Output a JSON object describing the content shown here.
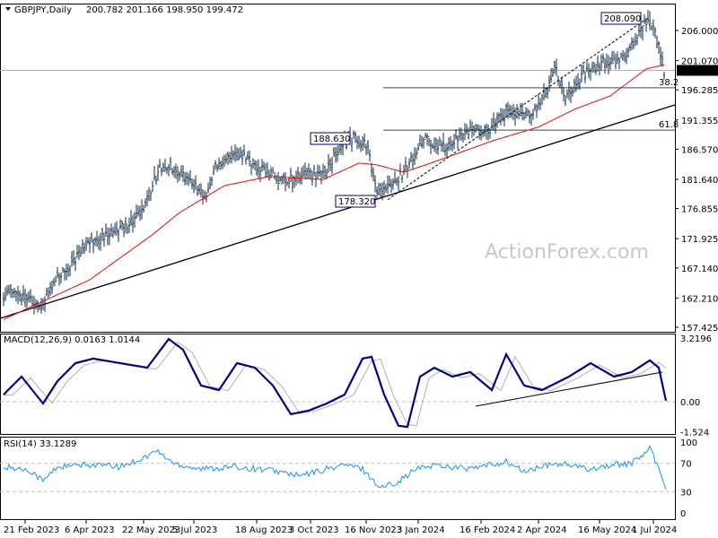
{
  "header": {
    "symbol": "GBPJPY,Daily",
    "ohlc": "200.782 201.166 198.950 199.472"
  },
  "watermark": "ActionForex.com",
  "colors": {
    "bars": "#0f2a44",
    "ma": "#ff0000",
    "macd": "#00008b",
    "signal": "#b0b0b0",
    "rsi": "#1e90ff"
  },
  "chart_data": [
    {
      "type": "line",
      "title": "GBPJPY,Daily",
      "ylim": [
        157.425,
        208.5
      ],
      "yticks": [
        "206.000",
        "201.070",
        "196.285",
        "191.355",
        "186.570",
        "181.640",
        "176.855",
        "171.925",
        "167.140",
        "162.210",
        "157.425"
      ],
      "ytick_values": [
        206.0,
        201.07,
        196.285,
        191.355,
        186.57,
        181.64,
        176.855,
        171.925,
        167.14,
        162.21,
        157.425
      ],
      "current_price": "199.472",
      "x_labels": [
        "21 Feb 2023",
        "6 Apr 2023",
        "22 May 2023",
        "5 Jul 2023",
        "18 Aug 2023",
        "3 Oct 2023",
        "16 Nov 2023",
        "3 Jan 2024",
        "16 Feb 2024",
        "2 Apr 2024",
        "16 May 2024",
        "1 Jul 2024"
      ],
      "x_label_bar": [
        12,
        46,
        78,
        106,
        141,
        171,
        202,
        231,
        266,
        298,
        332,
        362
      ],
      "price_points": [
        [
          0,
          162.6
        ],
        [
          8,
          163.3
        ],
        [
          20,
          160.4
        ],
        [
          28,
          164.8
        ],
        [
          48,
          171.4
        ],
        [
          63,
          172.9
        ],
        [
          78,
          176.5
        ],
        [
          86,
          183.1
        ],
        [
          93,
          183.9
        ],
        [
          103,
          181.6
        ],
        [
          113,
          178.7
        ],
        [
          118,
          183.9
        ],
        [
          128,
          186.1
        ],
        [
          138,
          184.6
        ],
        [
          148,
          182.4
        ],
        [
          160,
          181.6
        ],
        [
          168,
          182.4
        ],
        [
          178,
          182.4
        ],
        [
          188,
          186.8
        ],
        [
          195,
          188.6
        ],
        [
          203,
          186.8
        ],
        [
          208,
          179.4
        ],
        [
          218,
          180.9
        ],
        [
          228,
          185.3
        ],
        [
          235,
          188.3
        ],
        [
          248,
          186.8
        ],
        [
          258,
          189.7
        ],
        [
          270,
          189.7
        ],
        [
          280,
          192.6
        ],
        [
          293,
          191.9
        ],
        [
          303,
          196.3
        ],
        [
          307,
          200.0
        ],
        [
          313,
          194.9
        ],
        [
          323,
          198.6
        ],
        [
          333,
          200.8
        ],
        [
          343,
          200.8
        ],
        [
          353,
          205.1
        ],
        [
          359,
          208.09
        ],
        [
          365,
          203.7
        ],
        [
          368,
          199.47
        ]
      ],
      "ma_points": [
        [
          0,
          158.7
        ],
        [
          48,
          165.2
        ],
        [
          83,
          172.6
        ],
        [
          98,
          176.2
        ],
        [
          123,
          180.6
        ],
        [
          148,
          182.1
        ],
        [
          178,
          181.6
        ],
        [
          198,
          184.3
        ],
        [
          208,
          184.0
        ],
        [
          223,
          182.8
        ],
        [
          238,
          184.3
        ],
        [
          273,
          188.0
        ],
        [
          298,
          190.2
        ],
        [
          318,
          193.1
        ],
        [
          338,
          195.3
        ],
        [
          358,
          199.7
        ],
        [
          368,
          200.4
        ]
      ],
      "annotations": {
        "high": "208.090",
        "swing_high": "188.630",
        "low": "178.320",
        "fib1": "38.2",
        "fib2": "61.8"
      },
      "fib_levels": [
        196.63,
        189.7
      ]
    },
    {
      "type": "line",
      "title": "MACD(12,26,9) 0.0163 1.0144",
      "yticks": [
        "3.2196",
        "0.00",
        "-1.524"
      ],
      "ylim": [
        -1.524,
        3.2196
      ],
      "macd_points": [
        [
          0,
          0.36
        ],
        [
          10,
          1.27
        ],
        [
          22,
          -0.09
        ],
        [
          30,
          1.04
        ],
        [
          40,
          1.95
        ],
        [
          50,
          2.18
        ],
        [
          65,
          1.95
        ],
        [
          80,
          1.72
        ],
        [
          92,
          3.17
        ],
        [
          100,
          2.63
        ],
        [
          110,
          0.82
        ],
        [
          120,
          0.59
        ],
        [
          130,
          1.95
        ],
        [
          140,
          1.72
        ],
        [
          150,
          0.82
        ],
        [
          160,
          -0.63
        ],
        [
          170,
          -0.45
        ],
        [
          180,
          -0.09
        ],
        [
          190,
          0.36
        ],
        [
          200,
          2.18
        ],
        [
          205,
          2.27
        ],
        [
          212,
          0.36
        ],
        [
          220,
          -1.22
        ],
        [
          225,
          -1.27
        ],
        [
          232,
          1.27
        ],
        [
          240,
          1.72
        ],
        [
          250,
          1.27
        ],
        [
          260,
          1.5
        ],
        [
          272,
          0.59
        ],
        [
          280,
          2.4
        ],
        [
          290,
          0.82
        ],
        [
          300,
          0.59
        ],
        [
          315,
          1.27
        ],
        [
          327,
          1.95
        ],
        [
          340,
          1.27
        ],
        [
          350,
          1.5
        ],
        [
          360,
          2.09
        ],
        [
          365,
          1.72
        ],
        [
          369,
          0.05
        ]
      ]
    },
    {
      "type": "line",
      "title": "RSI(14) 33.1289",
      "yticks": [
        "100",
        "70",
        "30",
        "0"
      ],
      "ylim": [
        0,
        100
      ],
      "rsi_points": [
        [
          0,
          65
        ],
        [
          15,
          60
        ],
        [
          22,
          45
        ],
        [
          30,
          65
        ],
        [
          50,
          68
        ],
        [
          65,
          65
        ],
        [
          80,
          80
        ],
        [
          85,
          88
        ],
        [
          95,
          70
        ],
        [
          110,
          62
        ],
        [
          130,
          65
        ],
        [
          150,
          60
        ],
        [
          165,
          52
        ],
        [
          180,
          62
        ],
        [
          190,
          68
        ],
        [
          200,
          62
        ],
        [
          210,
          35
        ],
        [
          220,
          45
        ],
        [
          230,
          62
        ],
        [
          240,
          68
        ],
        [
          260,
          62
        ],
        [
          280,
          72
        ],
        [
          290,
          58
        ],
        [
          300,
          65
        ],
        [
          310,
          70
        ],
        [
          325,
          62
        ],
        [
          340,
          68
        ],
        [
          350,
          70
        ],
        [
          360,
          90
        ],
        [
          364,
          70
        ],
        [
          367,
          48
        ],
        [
          369,
          33
        ]
      ]
    }
  ]
}
